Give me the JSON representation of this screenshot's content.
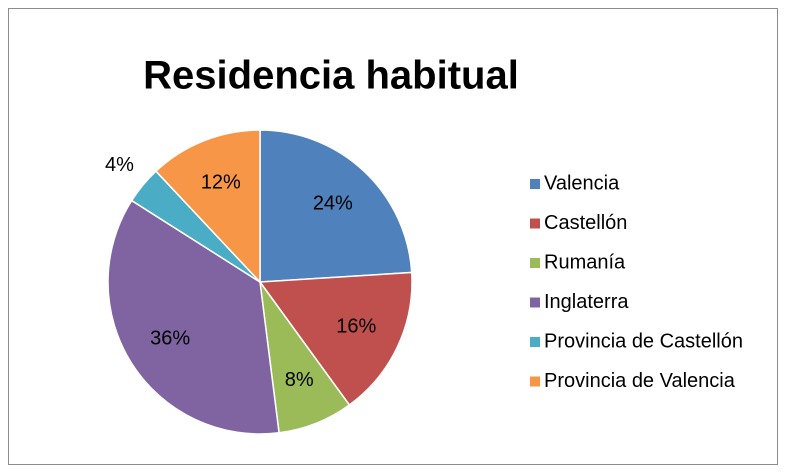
{
  "chart_data": {
    "type": "pie",
    "title": "Residencia habitual",
    "categories": [
      "Valencia",
      "Castellón",
      "Rumanía",
      "Inglaterra",
      "Provincia de Castellón",
      "Provincia de Valencia"
    ],
    "values": [
      24,
      16,
      8,
      36,
      4,
      12
    ],
    "value_labels": [
      "24%",
      "16%",
      "8%",
      "36%",
      "4%",
      "12%"
    ],
    "colors": [
      "#4f81bd",
      "#c0504d",
      "#9bbb59",
      "#8064a2",
      "#4bacc6",
      "#f79646"
    ],
    "legend": "right"
  }
}
